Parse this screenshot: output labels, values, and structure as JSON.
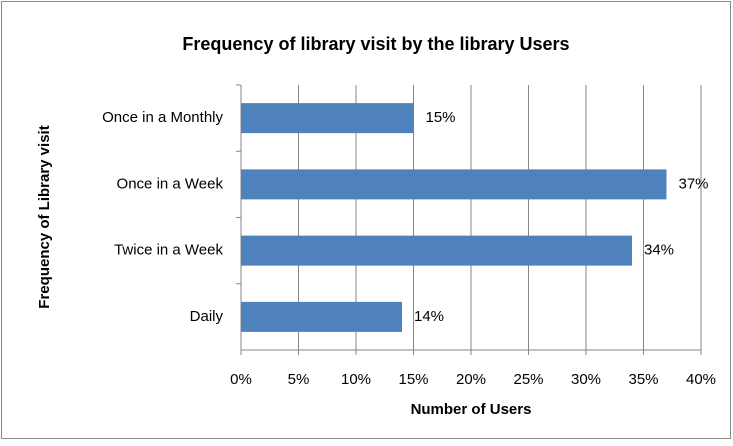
{
  "chart_data": {
    "type": "bar",
    "orientation": "horizontal",
    "title": "Frequency of library visit by the library Users",
    "x_label": "Number of Users",
    "y_label": "Frequency of Library visit",
    "categories": [
      "Once in a Monthly",
      "Once in a Week",
      "Twice in a Week",
      "Daily"
    ],
    "values": [
      15,
      37,
      34,
      14
    ],
    "value_labels": [
      "15%",
      "37%",
      "34%",
      "14%"
    ],
    "color": "#4f81bd",
    "xlim": [
      0,
      40
    ],
    "xticks": [
      {
        "value": 0,
        "label": "0%"
      },
      {
        "value": 5,
        "label": "5%"
      },
      {
        "value": 10,
        "label": "10%"
      },
      {
        "value": 15,
        "label": "15%"
      },
      {
        "value": 20,
        "label": "20%"
      },
      {
        "value": 25,
        "label": "25%"
      },
      {
        "value": 30,
        "label": "30%"
      },
      {
        "value": 35,
        "label": "35%"
      },
      {
        "value": 40,
        "label": "40%"
      }
    ],
    "grid": true
  }
}
